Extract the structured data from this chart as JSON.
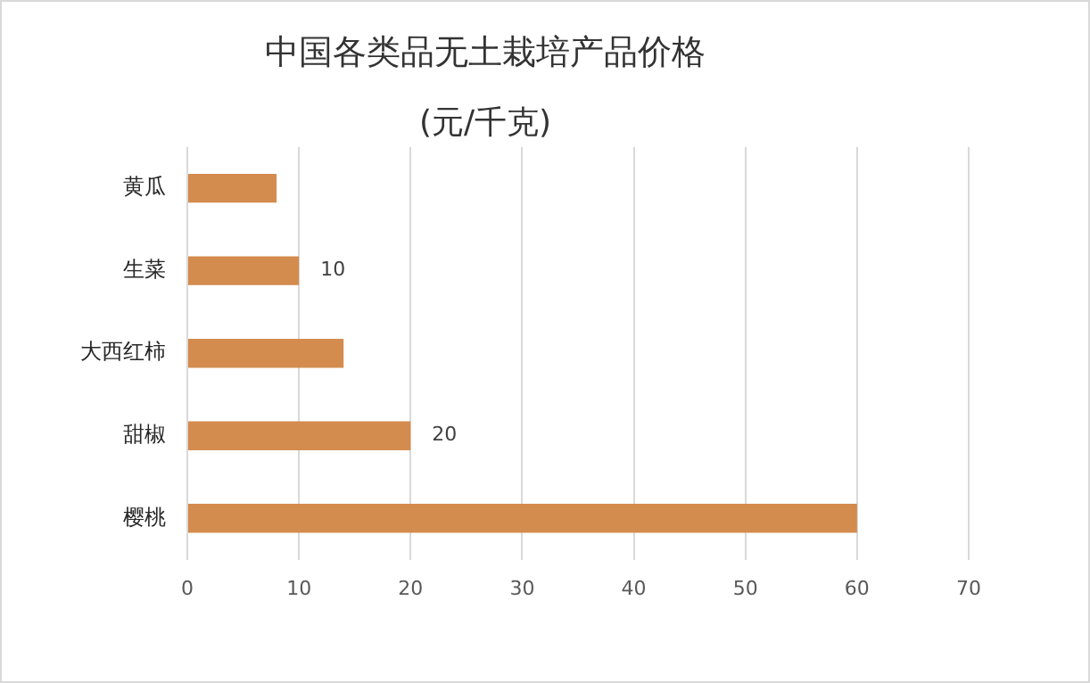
{
  "chart_data": {
    "type": "bar",
    "orientation": "horizontal",
    "title": "中国各类品无土栽培产品价格",
    "subtitle": "(元/千克)",
    "categories": [
      "黄瓜",
      "生菜",
      "大西红柿",
      "甜椒",
      "樱桃"
    ],
    "values": [
      8,
      10,
      14,
      20,
      60
    ],
    "color": "#d48b4e",
    "value_labels": [
      null,
      "10",
      null,
      "20",
      null
    ],
    "xlim": [
      0,
      70
    ],
    "xticks": [
      0,
      10,
      20,
      30,
      40,
      50,
      60,
      70
    ],
    "grid": "x"
  }
}
